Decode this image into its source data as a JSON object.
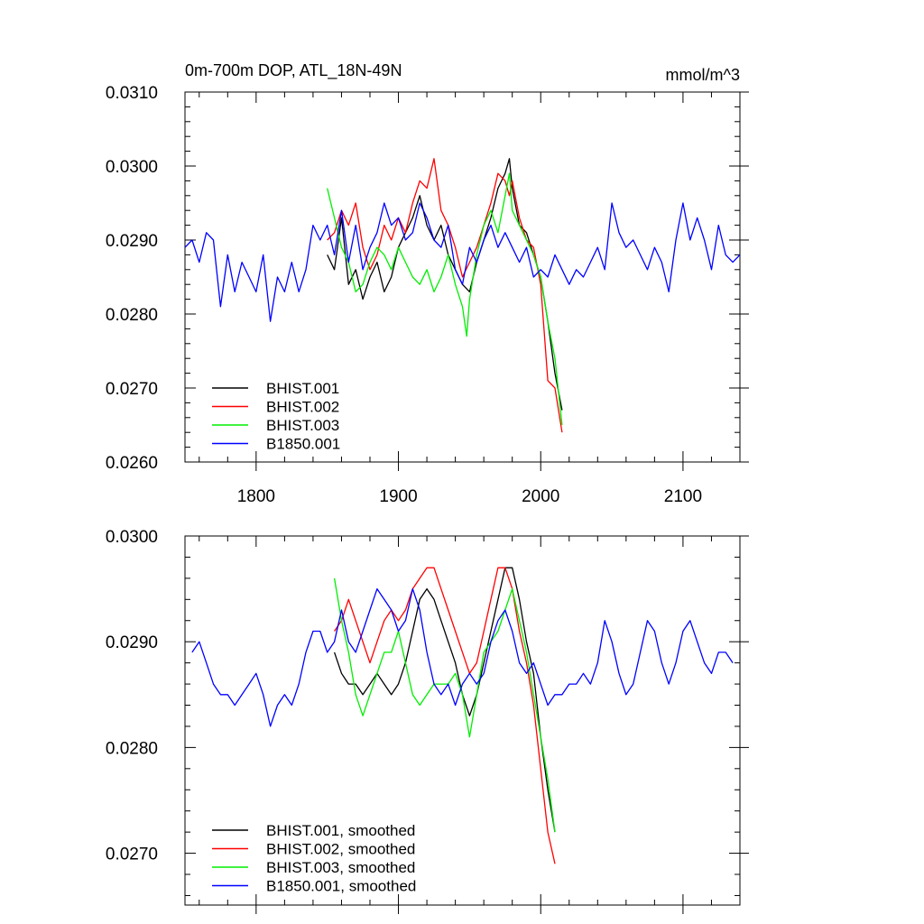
{
  "chart_data": [
    {
      "type": "line",
      "title": "0m-700m DOP, ATL_18N-49N",
      "units_label": "mmol/m^3",
      "xlabel": "",
      "ylabel": "",
      "xlim": [
        1750,
        2140
      ],
      "ylim": [
        0.026,
        0.031
      ],
      "xticks": [
        1800,
        1900,
        2000,
        2100
      ],
      "xtick_labels": [
        "1800",
        "1900",
        "2000",
        "2100"
      ],
      "yticks": [
        0.026,
        0.027,
        0.028,
        0.029,
        0.03,
        0.031
      ],
      "ytick_labels": [
        "0.0260",
        "0.0270",
        "0.0280",
        "0.0290",
        "0.0300",
        "0.0310"
      ],
      "grid": false,
      "legend_position": "bottom-left",
      "series": [
        {
          "name": "BHIST.001",
          "color": "#000000",
          "x": [
            1850,
            1855,
            1860,
            1865,
            1870,
            1875,
            1880,
            1885,
            1890,
            1895,
            1900,
            1905,
            1910,
            1915,
            1920,
            1925,
            1930,
            1935,
            1940,
            1945,
            1950,
            1955,
            1960,
            1965,
            1970,
            1975,
            1978,
            1980,
            1985,
            1990,
            1995,
            2000,
            2005,
            2010,
            2015
          ],
          "y": [
            0.0288,
            0.0286,
            0.0293,
            0.0284,
            0.0286,
            0.0282,
            0.0285,
            0.0287,
            0.0283,
            0.0285,
            0.0289,
            0.0291,
            0.0293,
            0.0296,
            0.0292,
            0.029,
            0.0292,
            0.0288,
            0.0286,
            0.0284,
            0.0283,
            0.0287,
            0.029,
            0.0293,
            0.0297,
            0.0299,
            0.0301,
            0.0297,
            0.0292,
            0.0291,
            0.0288,
            0.0285,
            0.0279,
            0.0272,
            0.0267
          ]
        },
        {
          "name": "BHIST.002",
          "color": "#ff0000",
          "x": [
            1850,
            1855,
            1860,
            1865,
            1870,
            1875,
            1880,
            1885,
            1890,
            1895,
            1900,
            1905,
            1910,
            1915,
            1920,
            1925,
            1930,
            1935,
            1940,
            1945,
            1950,
            1955,
            1960,
            1965,
            1970,
            1975,
            1978,
            1980,
            1985,
            1990,
            1995,
            2000,
            2005,
            2010,
            2015
          ],
          "y": [
            0.029,
            0.0291,
            0.0294,
            0.0292,
            0.0295,
            0.0289,
            0.0286,
            0.0288,
            0.0292,
            0.029,
            0.0293,
            0.0291,
            0.0295,
            0.0298,
            0.0297,
            0.0301,
            0.0294,
            0.0292,
            0.0289,
            0.0285,
            0.0287,
            0.0289,
            0.0292,
            0.0295,
            0.0299,
            0.0298,
            0.0296,
            0.0298,
            0.0293,
            0.029,
            0.0289,
            0.0284,
            0.0271,
            0.027,
            0.0264
          ]
        },
        {
          "name": "BHIST.003",
          "color": "#00ee00",
          "x": [
            1850,
            1855,
            1860,
            1865,
            1870,
            1875,
            1880,
            1885,
            1890,
            1895,
            1900,
            1905,
            1910,
            1915,
            1920,
            1925,
            1930,
            1935,
            1940,
            1945,
            1948,
            1950,
            1955,
            1960,
            1965,
            1970,
            1975,
            1978,
            1980,
            1985,
            1990,
            1995,
            2000,
            2005,
            2010,
            2015
          ],
          "y": [
            0.0297,
            0.0293,
            0.0289,
            0.0287,
            0.0283,
            0.0284,
            0.0287,
            0.0289,
            0.0288,
            0.0286,
            0.0289,
            0.0287,
            0.0285,
            0.0284,
            0.0286,
            0.0283,
            0.0285,
            0.0288,
            0.0284,
            0.0281,
            0.0277,
            0.0282,
            0.0288,
            0.0292,
            0.0294,
            0.0291,
            0.0296,
            0.0299,
            0.0294,
            0.0292,
            0.029,
            0.0288,
            0.0285,
            0.0279,
            0.0274,
            0.0265
          ]
        },
        {
          "name": "B1850.001",
          "color": "#0000ff",
          "x": [
            1750,
            1755,
            1760,
            1765,
            1770,
            1775,
            1780,
            1785,
            1790,
            1795,
            1800,
            1805,
            1810,
            1815,
            1820,
            1825,
            1830,
            1835,
            1840,
            1845,
            1850,
            1855,
            1860,
            1865,
            1870,
            1875,
            1880,
            1885,
            1890,
            1895,
            1900,
            1905,
            1910,
            1915,
            1920,
            1925,
            1930,
            1935,
            1940,
            1945,
            1950,
            1955,
            1960,
            1965,
            1970,
            1975,
            1980,
            1985,
            1990,
            1995,
            2000,
            2005,
            2010,
            2015,
            2020,
            2025,
            2030,
            2035,
            2040,
            2045,
            2050,
            2055,
            2060,
            2065,
            2070,
            2075,
            2080,
            2085,
            2090,
            2095,
            2100,
            2105,
            2110,
            2115,
            2120,
            2125,
            2130,
            2135,
            2140
          ],
          "y": [
            0.0289,
            0.029,
            0.0287,
            0.0291,
            0.029,
            0.0281,
            0.0288,
            0.0283,
            0.0287,
            0.0285,
            0.0283,
            0.0288,
            0.0279,
            0.0285,
            0.0283,
            0.0287,
            0.0283,
            0.0286,
            0.0292,
            0.029,
            0.0292,
            0.0288,
            0.0294,
            0.0287,
            0.0292,
            0.0286,
            0.0289,
            0.0291,
            0.0295,
            0.0292,
            0.0293,
            0.029,
            0.0291,
            0.0295,
            0.0293,
            0.029,
            0.0289,
            0.0292,
            0.0286,
            0.0284,
            0.0289,
            0.0287,
            0.029,
            0.0292,
            0.0289,
            0.0291,
            0.0289,
            0.0287,
            0.0289,
            0.0285,
            0.0286,
            0.0285,
            0.0288,
            0.0286,
            0.0284,
            0.0286,
            0.0285,
            0.0287,
            0.0289,
            0.0286,
            0.0295,
            0.0291,
            0.0289,
            0.029,
            0.0288,
            0.0286,
            0.0289,
            0.0287,
            0.0283,
            0.029,
            0.0295,
            0.029,
            0.0293,
            0.029,
            0.0286,
            0.0292,
            0.0288,
            0.0287,
            0.0288
          ]
        }
      ]
    },
    {
      "type": "line",
      "title": "",
      "xlabel": "",
      "ylabel": "",
      "xlim": [
        1750,
        2140
      ],
      "ylim": [
        0.02651,
        0.03
      ],
      "xticks": [
        1800,
        1900,
        2000,
        2100
      ],
      "xtick_labels": [],
      "yticks": [
        0.027,
        0.028,
        0.029,
        0.03
      ],
      "ytick_labels": [
        "0.0270",
        "0.0280",
        "0.0290",
        "0.0300"
      ],
      "grid": false,
      "legend_position": "bottom-left",
      "series": [
        {
          "name": "BHIST.001, smoothed",
          "color": "#000000",
          "x": [
            1855,
            1860,
            1865,
            1870,
            1875,
            1880,
            1885,
            1890,
            1895,
            1900,
            1905,
            1910,
            1915,
            1920,
            1925,
            1930,
            1935,
            1940,
            1945,
            1950,
            1955,
            1960,
            1965,
            1970,
            1975,
            1980,
            1985,
            1990,
            1995,
            2000,
            2005,
            2010
          ],
          "y": [
            0.0289,
            0.0287,
            0.0286,
            0.0286,
            0.0285,
            0.0286,
            0.0287,
            0.0286,
            0.0285,
            0.0286,
            0.0288,
            0.0291,
            0.0294,
            0.0295,
            0.0294,
            0.0292,
            0.029,
            0.0288,
            0.0285,
            0.0283,
            0.0285,
            0.0288,
            0.0291,
            0.0294,
            0.0297,
            0.0297,
            0.0294,
            0.029,
            0.0287,
            0.0281,
            0.0276,
            0.0272
          ]
        },
        {
          "name": "BHIST.002, smoothed",
          "color": "#ff0000",
          "x": [
            1855,
            1860,
            1865,
            1870,
            1875,
            1880,
            1885,
            1890,
            1895,
            1900,
            1905,
            1910,
            1915,
            1920,
            1925,
            1930,
            1935,
            1940,
            1945,
            1950,
            1955,
            1960,
            1965,
            1970,
            1975,
            1980,
            1985,
            1990,
            1995,
            2000,
            2005,
            2010
          ],
          "y": [
            0.0291,
            0.0292,
            0.0294,
            0.0292,
            0.029,
            0.0288,
            0.029,
            0.0292,
            0.0293,
            0.0292,
            0.0293,
            0.0295,
            0.0296,
            0.0297,
            0.0297,
            0.0295,
            0.0293,
            0.0291,
            0.0289,
            0.0287,
            0.0288,
            0.0291,
            0.0294,
            0.0297,
            0.0297,
            0.0295,
            0.0291,
            0.0288,
            0.0284,
            0.0278,
            0.0272,
            0.0269
          ]
        },
        {
          "name": "BHIST.003, smoothed",
          "color": "#00ee00",
          "x": [
            1855,
            1860,
            1865,
            1870,
            1875,
            1880,
            1885,
            1890,
            1895,
            1900,
            1905,
            1910,
            1915,
            1920,
            1925,
            1930,
            1935,
            1940,
            1945,
            1950,
            1955,
            1960,
            1965,
            1970,
            1975,
            1980,
            1985,
            1990,
            1995,
            2000,
            2005,
            2010
          ],
          "y": [
            0.0296,
            0.0292,
            0.0289,
            0.0285,
            0.0283,
            0.0285,
            0.0287,
            0.0289,
            0.0289,
            0.0291,
            0.0288,
            0.0285,
            0.0284,
            0.0285,
            0.0286,
            0.0286,
            0.0286,
            0.0287,
            0.0285,
            0.0281,
            0.0285,
            0.0289,
            0.029,
            0.0291,
            0.0293,
            0.0295,
            0.0292,
            0.0289,
            0.0285,
            0.0281,
            0.0277,
            0.0272
          ]
        },
        {
          "name": "B1850.001, smoothed",
          "color": "#0000ff",
          "x": [
            1755,
            1760,
            1765,
            1770,
            1775,
            1780,
            1785,
            1790,
            1795,
            1800,
            1805,
            1810,
            1815,
            1820,
            1825,
            1830,
            1835,
            1840,
            1845,
            1850,
            1855,
            1860,
            1865,
            1870,
            1875,
            1880,
            1885,
            1890,
            1895,
            1900,
            1905,
            1910,
            1915,
            1920,
            1925,
            1930,
            1935,
            1940,
            1945,
            1950,
            1955,
            1960,
            1965,
            1970,
            1975,
            1980,
            1985,
            1990,
            1995,
            2000,
            2005,
            2010,
            2015,
            2020,
            2025,
            2030,
            2035,
            2040,
            2045,
            2050,
            2055,
            2060,
            2065,
            2070,
            2075,
            2080,
            2085,
            2090,
            2095,
            2100,
            2105,
            2110,
            2115,
            2120,
            2125,
            2130,
            2135
          ],
          "y": [
            0.0289,
            0.029,
            0.0288,
            0.0286,
            0.0285,
            0.0285,
            0.0284,
            0.0285,
            0.0286,
            0.0287,
            0.0285,
            0.0282,
            0.0284,
            0.0285,
            0.0284,
            0.0286,
            0.0289,
            0.0291,
            0.0291,
            0.0289,
            0.029,
            0.0293,
            0.029,
            0.0289,
            0.0291,
            0.0293,
            0.0295,
            0.0294,
            0.0293,
            0.0291,
            0.0292,
            0.0295,
            0.0293,
            0.0289,
            0.0286,
            0.0285,
            0.0286,
            0.0284,
            0.0286,
            0.0287,
            0.0286,
            0.0287,
            0.029,
            0.0292,
            0.0293,
            0.0291,
            0.0288,
            0.0287,
            0.0288,
            0.0286,
            0.0284,
            0.0285,
            0.0285,
            0.0286,
            0.0286,
            0.0287,
            0.0286,
            0.0288,
            0.0292,
            0.029,
            0.0287,
            0.0285,
            0.0286,
            0.0289,
            0.0292,
            0.0291,
            0.0288,
            0.0286,
            0.0288,
            0.0291,
            0.0292,
            0.029,
            0.0288,
            0.0287,
            0.0289,
            0.0289,
            0.0288
          ]
        }
      ]
    }
  ]
}
